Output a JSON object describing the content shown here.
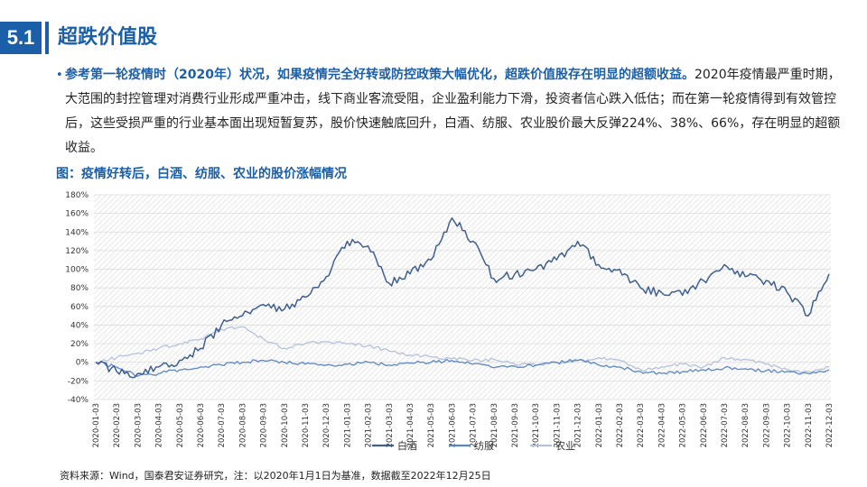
{
  "section": {
    "number": "5.1",
    "title": "超跌价值股"
  },
  "paragraph": {
    "bold": "参考第一轮疫情时（2020年）状况，如果疫情完全好转或防控政策大幅优化，超跌价值股存在明显的超额收益。",
    "rest": "2020年疫情最严重时期，大范围的封控管理对消费行业形成严重冲击，线下商业客流受阻，企业盈利能力下滑，投资者信心跌入低估；而在第一轮疫情得到有效管控后，这些受损严重的行业基本面出现短暂复苏，股价快速触底回升，白酒、纺服、农业股价最大反弹224%、38%、66%，存在明显的超额收益。"
  },
  "figure_title": "图：疫情好转后，白酒、纺服、农业的股价涨幅情况",
  "source_note": "资料来源：Wind，国泰君安证券研究，注：以2020年1月1日为基准，数据截至2022年12月25日",
  "chart_data": {
    "type": "line",
    "y_unit": "%",
    "ylim": [
      -40,
      180
    ],
    "y_ticks": [
      -40,
      -20,
      0,
      20,
      40,
      60,
      80,
      100,
      120,
      140,
      160,
      180
    ],
    "y_tick_labels": [
      "-40%",
      "-20%",
      "0%",
      "20%",
      "40%",
      "60%",
      "80%",
      "100%",
      "120%",
      "140%",
      "160%",
      "180%"
    ],
    "x": [
      "2020-01-03",
      "2020-02-03",
      "2020-03-03",
      "2020-04-03",
      "2020-05-03",
      "2020-06-03",
      "2020-07-03",
      "2020-08-03",
      "2020-09-03",
      "2020-10-03",
      "2020-11-03",
      "2020-12-03",
      "2021-01-03",
      "2021-02-03",
      "2021-03-03",
      "2021-04-03",
      "2021-05-03",
      "2021-06-03",
      "2021-07-03",
      "2021-08-03",
      "2021-09-03",
      "2021-10-03",
      "2021-11-03",
      "2021-12-03",
      "2022-01-03",
      "2022-02-03",
      "2022-03-03",
      "2022-04-03",
      "2022-05-03",
      "2022-06-03",
      "2022-07-03",
      "2022-08-03",
      "2022-09-03",
      "2022-10-03",
      "2022-11-03",
      "2022-12-03"
    ],
    "grid": true,
    "legend_position": "bottom",
    "series": [
      {
        "name": "白酒",
        "color": "#3e5f8f",
        "values": [
          0,
          -10,
          -12,
          -5,
          2,
          15,
          40,
          50,
          62,
          57,
          70,
          92,
          130,
          125,
          85,
          95,
          110,
          155,
          130,
          90,
          95,
          100,
          110,
          130,
          105,
          100,
          80,
          75,
          72,
          88,
          105,
          92,
          88,
          75,
          50,
          95
        ]
      },
      {
        "name": "纺服",
        "color": "#5b86c5",
        "values": [
          0,
          -5,
          -15,
          -12,
          -8,
          -5,
          -3,
          0,
          2,
          0,
          -2,
          -3,
          -2,
          0,
          -3,
          -1,
          0,
          2,
          -2,
          -6,
          -4,
          -3,
          0,
          2,
          -3,
          -5,
          -10,
          -12,
          -10,
          -8,
          -6,
          -7,
          -9,
          -10,
          -12,
          -8
        ]
      },
      {
        "name": "农业",
        "color": "#b4c2dc",
        "values": [
          0,
          5,
          10,
          15,
          20,
          25,
          35,
          38,
          25,
          15,
          20,
          22,
          20,
          18,
          12,
          8,
          6,
          4,
          2,
          3,
          -2,
          -3,
          0,
          2,
          5,
          2,
          -8,
          -5,
          -2,
          -5,
          5,
          3,
          -2,
          -8,
          -10,
          -5
        ]
      }
    ]
  }
}
